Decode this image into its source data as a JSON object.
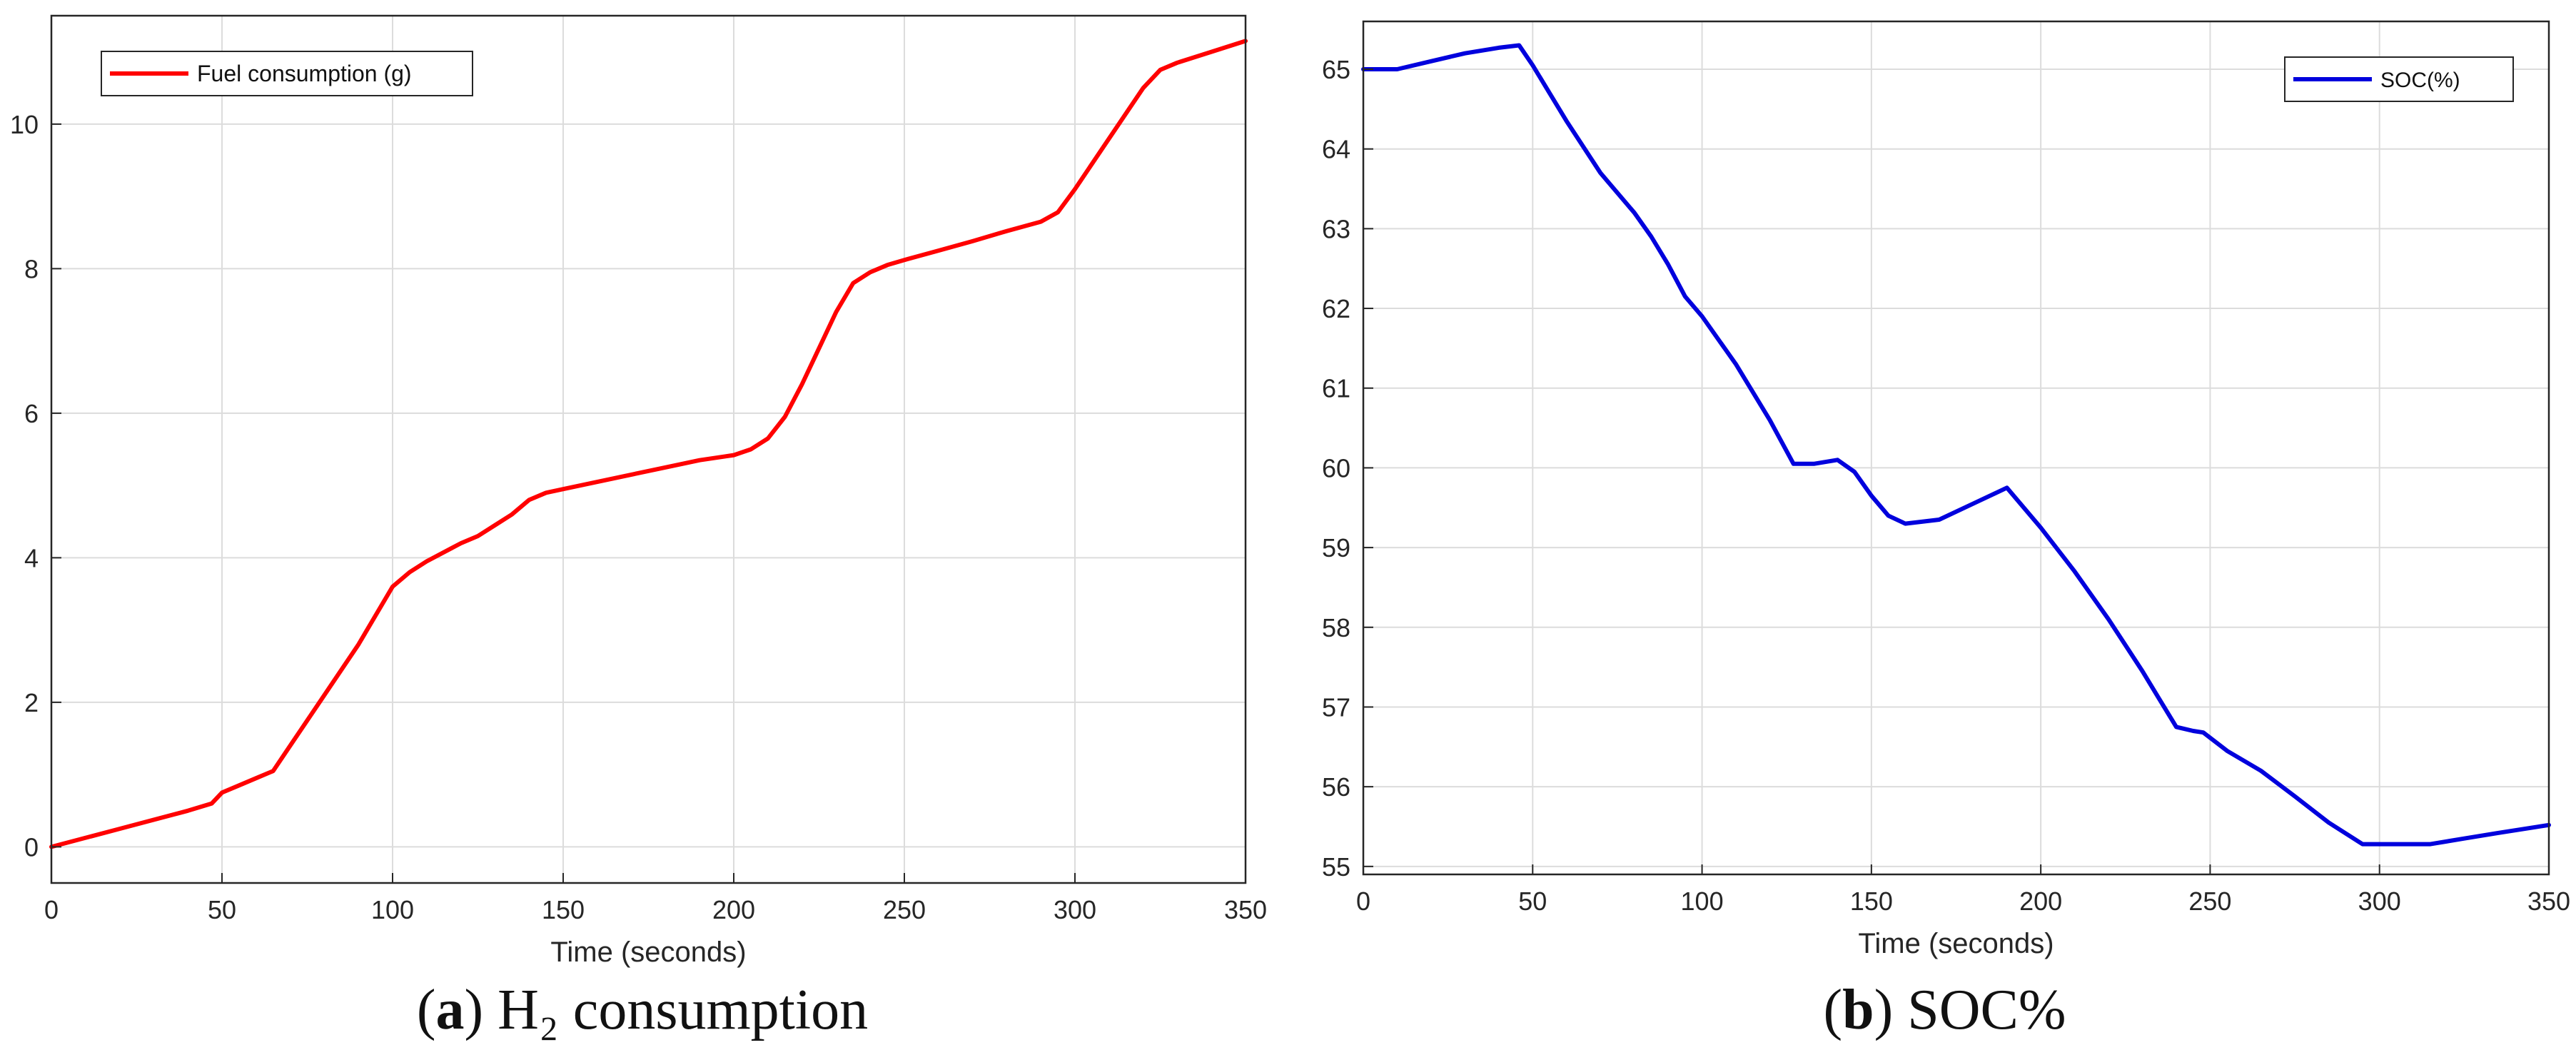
{
  "chart_data": [
    {
      "type": "line",
      "xlabel": "Time (seconds)",
      "ylabel": "",
      "xlim": [
        0,
        350
      ],
      "ylim": [
        -0.5,
        11.5
      ],
      "xticks": [
        0,
        50,
        100,
        150,
        200,
        250,
        300,
        350
      ],
      "yticks": [
        0,
        2,
        4,
        6,
        8,
        10
      ],
      "grid": true,
      "legend_position": "top-left",
      "series": [
        {
          "name": "Fuel consumption (g)",
          "color": "#ff0000",
          "x": [
            0,
            20,
            40,
            47,
            50,
            55,
            60,
            65,
            70,
            80,
            90,
            95,
            100,
            105,
            110,
            120,
            125,
            130,
            135,
            140,
            145,
            150,
            160,
            170,
            180,
            190,
            200,
            205,
            210,
            215,
            220,
            225,
            230,
            235,
            240,
            245,
            250,
            260,
            270,
            280,
            290,
            295,
            300,
            310,
            320,
            325,
            330,
            340,
            350
          ],
          "y": [
            0,
            0.25,
            0.5,
            0.6,
            0.75,
            0.85,
            0.95,
            1.05,
            1.4,
            2.1,
            2.8,
            3.2,
            3.6,
            3.8,
            3.95,
            4.2,
            4.3,
            4.45,
            4.6,
            4.8,
            4.9,
            4.95,
            5.05,
            5.15,
            5.25,
            5.35,
            5.42,
            5.5,
            5.65,
            5.95,
            6.4,
            6.9,
            7.4,
            7.8,
            7.95,
            8.05,
            8.12,
            8.25,
            8.38,
            8.52,
            8.65,
            8.78,
            9.1,
            9.8,
            10.5,
            10.75,
            10.85,
            11.0,
            11.15
          ]
        }
      ]
    },
    {
      "type": "line",
      "xlabel": "Time (seconds)",
      "ylabel": "",
      "xlim": [
        0,
        350
      ],
      "ylim": [
        54.9,
        65.6
      ],
      "xticks": [
        0,
        50,
        100,
        150,
        200,
        250,
        300,
        350
      ],
      "yticks": [
        55,
        56,
        57,
        58,
        59,
        60,
        61,
        62,
        63,
        64,
        65
      ],
      "grid": true,
      "legend_position": "top-right",
      "series": [
        {
          "name": "SOC(%)",
          "color": "#0000dd",
          "x": [
            0,
            10,
            20,
            30,
            40,
            46,
            50,
            60,
            70,
            75,
            80,
            85,
            90,
            95,
            100,
            110,
            120,
            127,
            133,
            140,
            145,
            150,
            155,
            160,
            170,
            180,
            190,
            200,
            210,
            220,
            230,
            235,
            240,
            245,
            248,
            255,
            265,
            275,
            285,
            295,
            305,
            315,
            325,
            335,
            350
          ],
          "y": [
            65.0,
            65.0,
            65.1,
            65.2,
            65.27,
            65.3,
            65.05,
            64.35,
            63.7,
            63.45,
            63.2,
            62.9,
            62.55,
            62.15,
            61.9,
            61.3,
            60.6,
            60.05,
            60.05,
            60.1,
            59.95,
            59.65,
            59.4,
            59.3,
            59.35,
            59.55,
            59.75,
            59.25,
            58.7,
            58.1,
            57.45,
            57.1,
            56.75,
            56.7,
            56.68,
            56.45,
            56.2,
            55.88,
            55.55,
            55.28,
            55.28,
            55.28,
            55.35,
            55.42,
            55.52
          ]
        }
      ]
    }
  ],
  "captions": {
    "a_letter": "a",
    "a_text": "H₂ consumption",
    "b_letter": "b",
    "b_text": "SOC%"
  }
}
